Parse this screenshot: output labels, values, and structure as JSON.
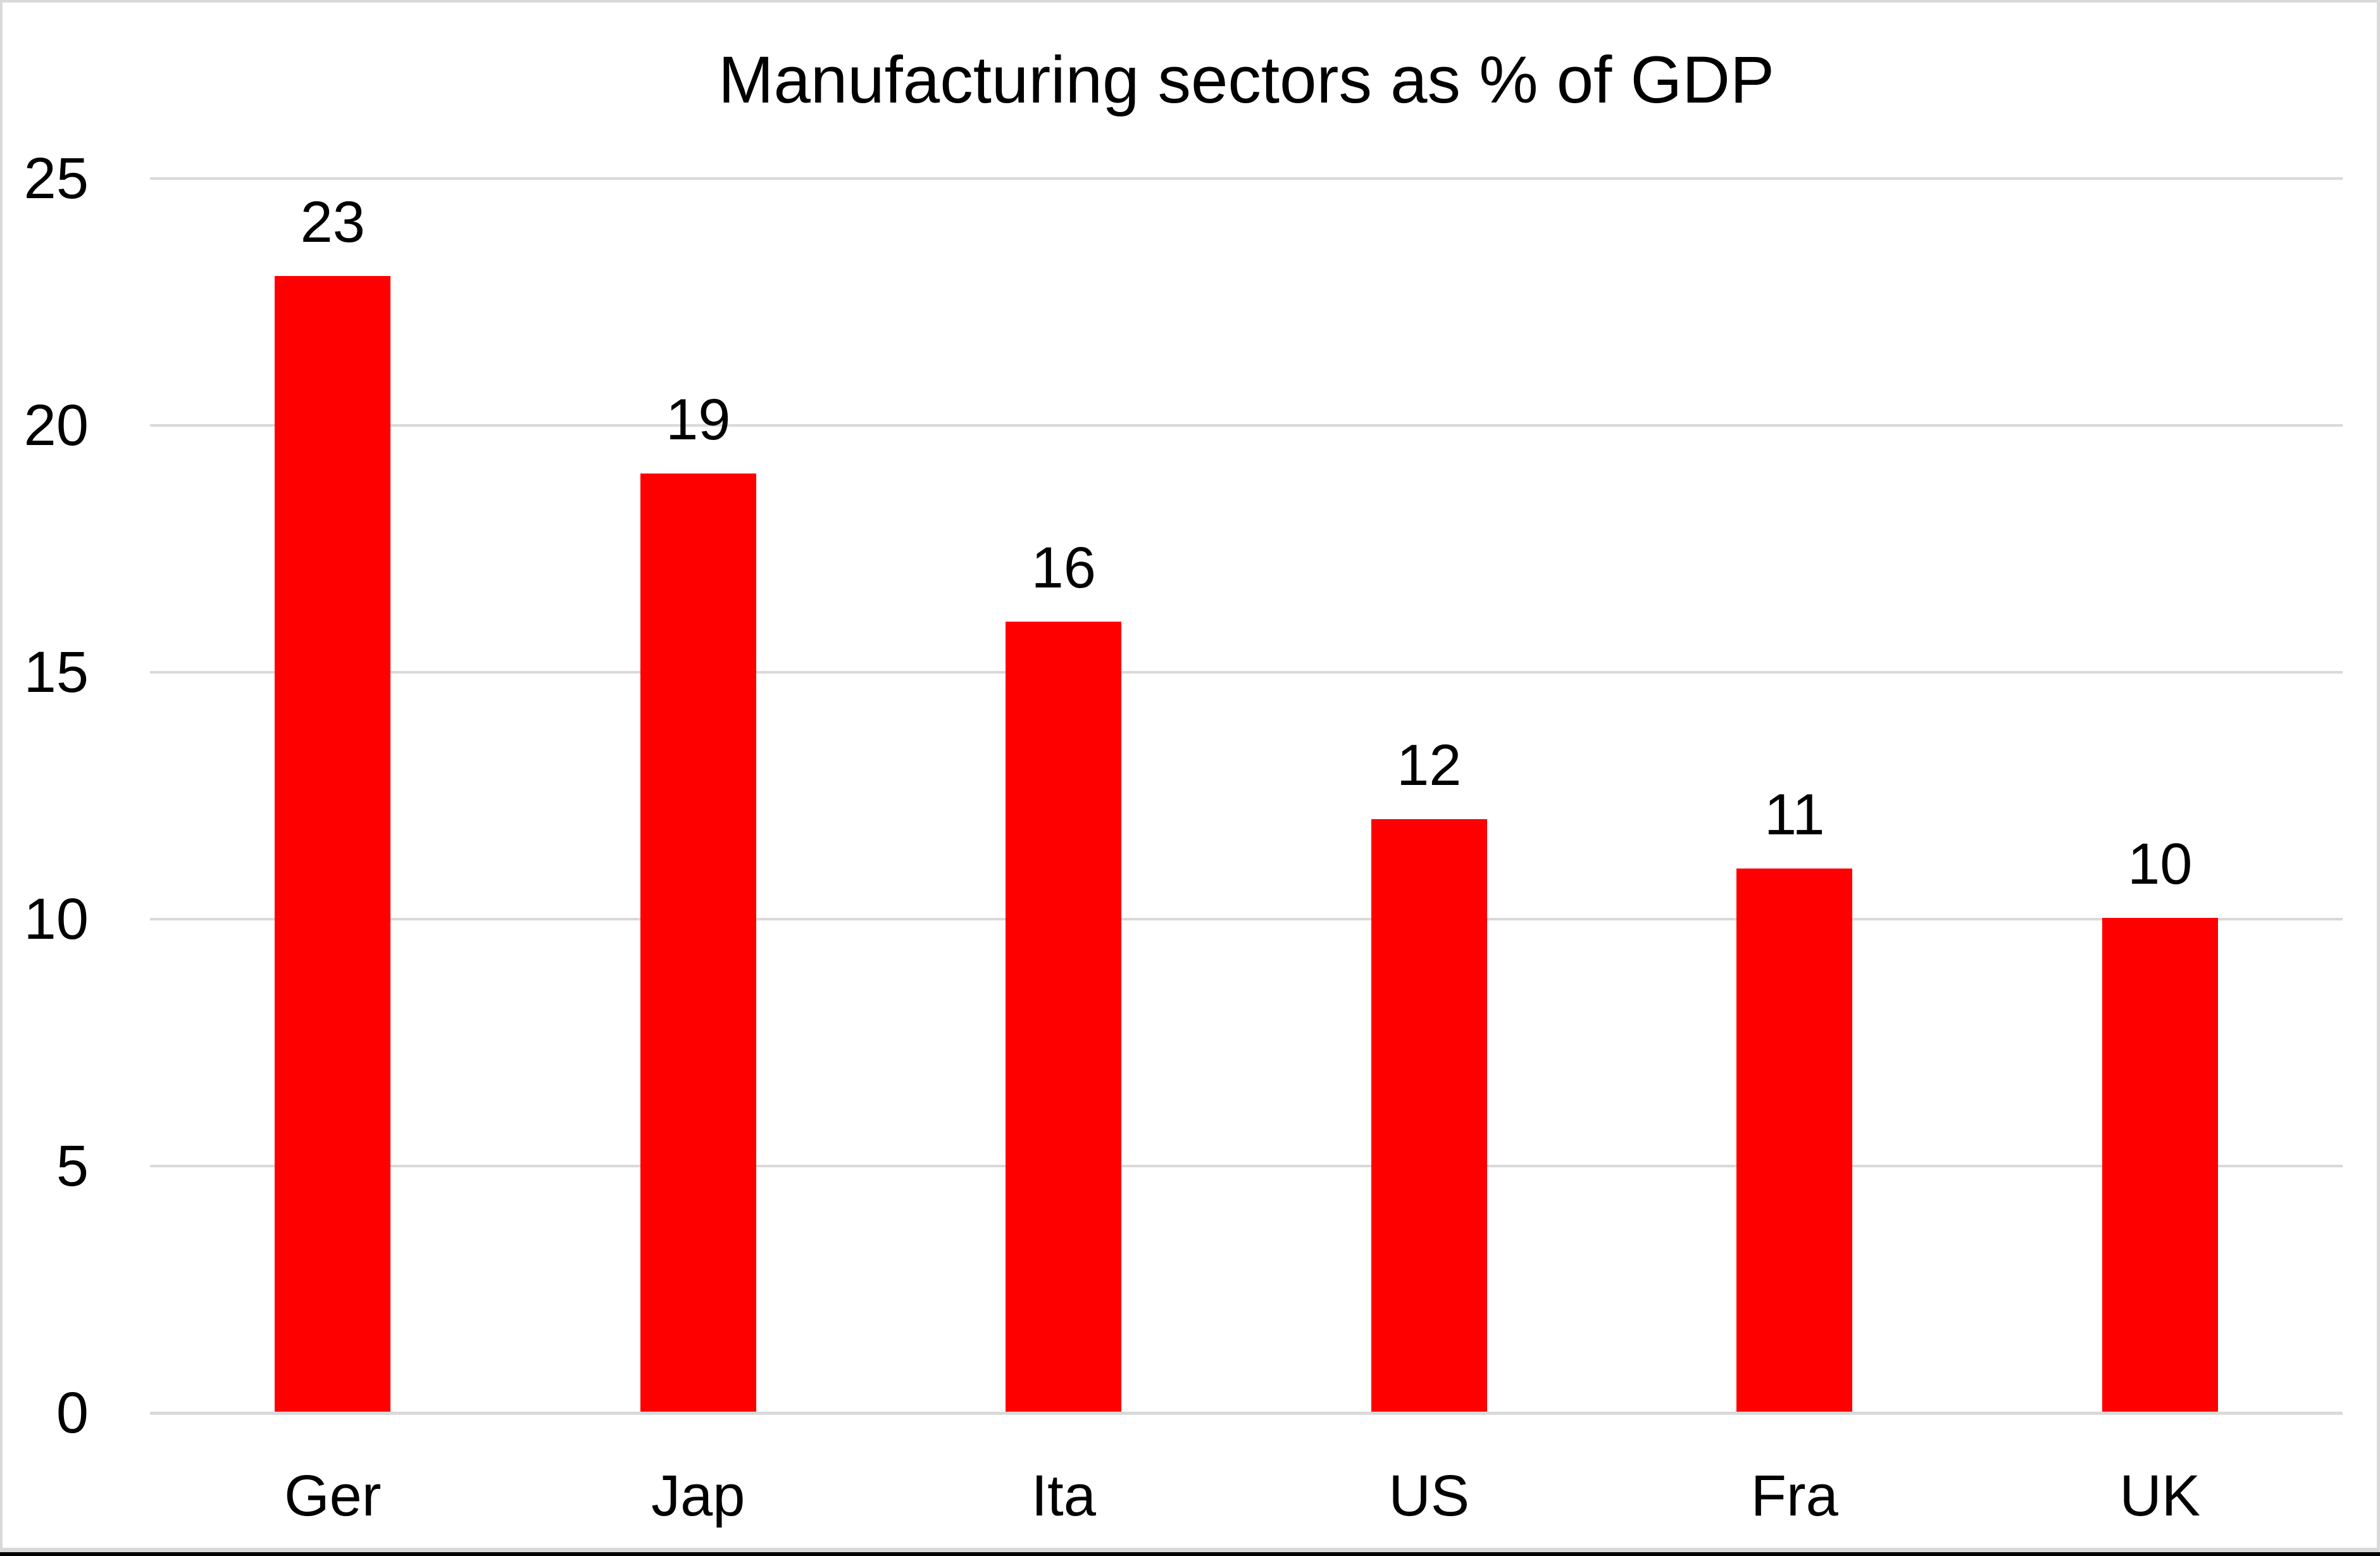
{
  "chart_data": {
    "type": "bar",
    "title": "Manufacturing sectors as % of GDP",
    "categories": [
      "Ger",
      "Jap",
      "Ita",
      "US",
      "Fra",
      "UK"
    ],
    "values": [
      23,
      19,
      16,
      12,
      11,
      10
    ],
    "data_labels": [
      "23",
      "19",
      "16",
      "12",
      "11",
      "10"
    ],
    "xlabel": "",
    "ylabel": "",
    "ylim": [
      0,
      25
    ],
    "yticks": [
      0,
      5,
      10,
      15,
      20,
      25
    ],
    "ytick_labels": [
      "0",
      "5",
      "10",
      "15",
      "20",
      "25"
    ],
    "grid": "horizontal",
    "legend": "none",
    "colors": {
      "bar": "#FF0000",
      "gridline": "#D9D9D9",
      "axis_line": "#D9D9D9",
      "text": "#000000",
      "background": "#FFFFFF",
      "frame_border": "#D9D9D9",
      "bottom_edge": "#000000"
    }
  }
}
